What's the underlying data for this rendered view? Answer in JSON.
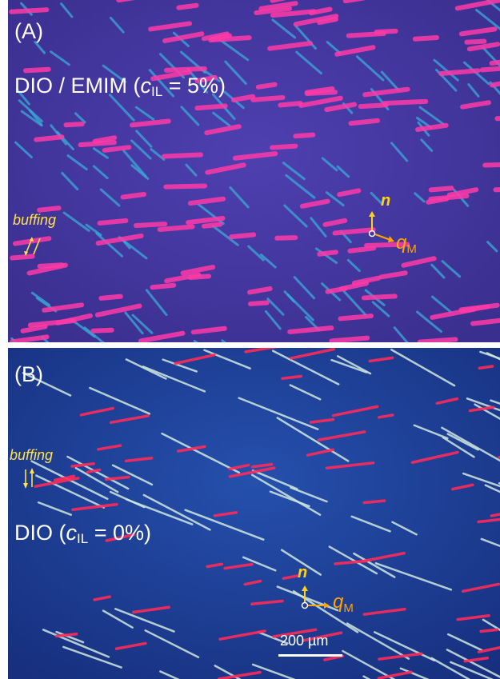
{
  "panel_a": {
    "letter": "(A)",
    "sample_prefix": "DIO / EMIM (",
    "sample_var": "c",
    "sample_sub": "IL",
    "sample_suffix": " = 5%)",
    "buffing_label": "buffing",
    "axis_n": "n",
    "axis_q": "q",
    "axis_q_sub": "M"
  },
  "panel_b": {
    "letter": "(B)",
    "sample_prefix": "DIO (",
    "sample_var": "c",
    "sample_sub": "IL",
    "sample_suffix": " = 0%)",
    "buffing_label": "buffing",
    "axis_n": "n",
    "axis_q": "q",
    "axis_q_sub": "M",
    "scale_label": "200 µm"
  },
  "colors": {
    "panel_a_background": "#4a3eaa",
    "panel_b_background": "#1f3f9a",
    "magenta_domains": "#ff3aa8",
    "cyan_domains": "#3aaad8",
    "red_domains": "#ff2a5a",
    "white_domains": "#cfe8e0",
    "buffing": "#ffe34a",
    "axis": "#ffb000"
  }
}
